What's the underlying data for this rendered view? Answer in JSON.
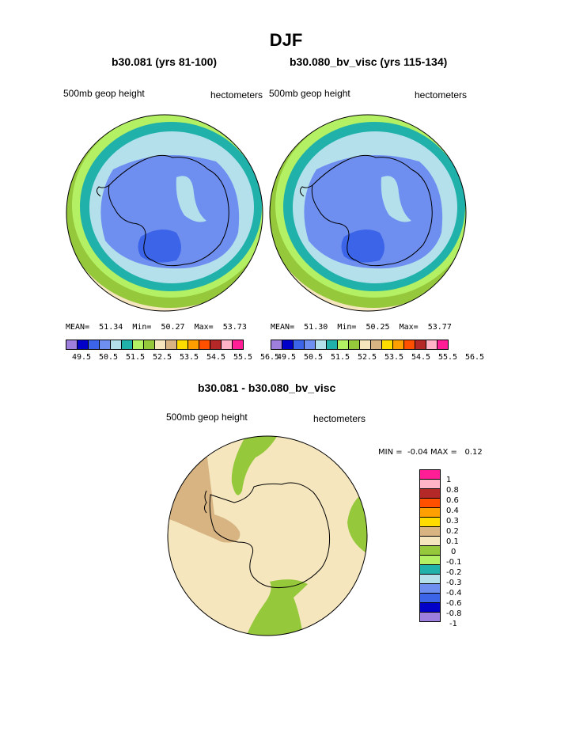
{
  "title": "DJF",
  "panels": [
    {
      "subtitle": "b30.081 (yrs 81-100)",
      "left_label": "500mb geop height",
      "right_label": "hectometers",
      "stats": {
        "mean_label": "MEAN=",
        "mean": "51.34",
        "min_label": "Min=",
        "min": "50.27",
        "max_label": "Max=",
        "max": "53.73"
      }
    },
    {
      "subtitle": "b30.080_bv_visc (yrs 115-134)",
      "left_label": "500mb geop height",
      "right_label": "hectometers",
      "stats": {
        "mean_label": "MEAN=",
        "mean": "51.30",
        "min_label": "Min=",
        "min": "50.25",
        "max_label": "Max=",
        "max": "53.77"
      }
    }
  ],
  "colorbar_levels": [
    "49.5",
    "50.5",
    "51.5",
    "52.5",
    "53.5",
    "54.5",
    "55.5",
    "56.5"
  ],
  "colorbar_colors": [
    "#9e7fde",
    "#0000c8",
    "#3c64e8",
    "#6e8ff0",
    "#b4e0ec",
    "#20b2aa",
    "#b4f064",
    "#96c83c",
    "#f5e6be",
    "#d7b482",
    "#ffdc00",
    "#ffa000",
    "#ff5000",
    "#b42828",
    "#ffb4c8",
    "#ff1e96"
  ],
  "diff_panel": {
    "subtitle": "b30.081 - b30.080_bv_visc",
    "left_label": "500mb geop height",
    "right_label": "hectometers",
    "minmax": {
      "min_label": "MIN =",
      "min": "-0.04",
      "max_label": "MAX =",
      "max": "0.12"
    },
    "colorbar_labels": [
      "1",
      "0.8",
      "0.6",
      "0.4",
      "0.3",
      "0.2",
      "0.1",
      "0",
      "-0.1",
      "-0.2",
      "-0.3",
      "-0.4",
      "-0.6",
      "-0.8",
      "-1"
    ],
    "colorbar_colors": [
      "#ff1e96",
      "#ffb4c8",
      "#b42828",
      "#ff5000",
      "#ffa000",
      "#ffdc00",
      "#d7b482",
      "#f5e6be",
      "#96c83c",
      "#b4f064",
      "#20b2aa",
      "#b4e0ec",
      "#6e8ff0",
      "#3c64e8",
      "#0000c8",
      "#9e7fde"
    ]
  }
}
